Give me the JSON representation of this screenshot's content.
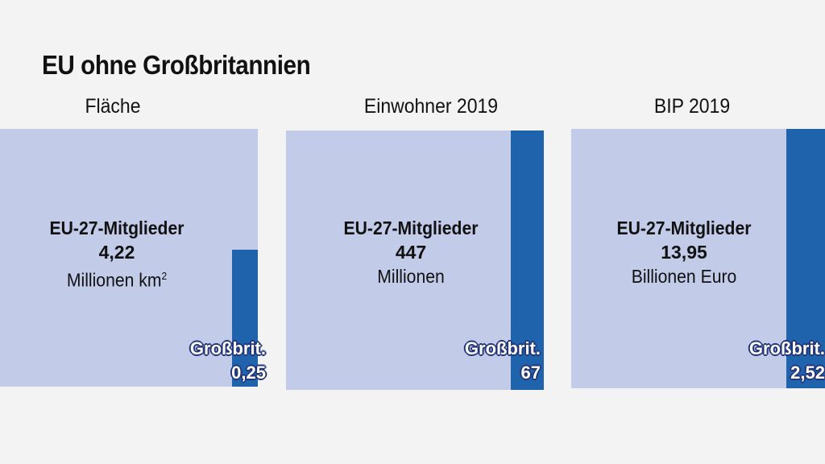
{
  "title": "EU ohne Großbritannien",
  "colors": {
    "eu27": "#c2cbe8",
    "uk": "#1f63ad",
    "background": "#f3f3f3"
  },
  "panels": [
    {
      "label": "Fläche",
      "eu_title": "EU-27-Mitglieder",
      "eu_value": "4,22",
      "eu_unit": "Millionen km",
      "eu_unit_sup": "2",
      "uk_label": "Großbrit.",
      "uk_value": "0,25"
    },
    {
      "label": "Einwohner 2019",
      "eu_title": "EU-27-Mitglieder",
      "eu_value": "447",
      "eu_unit": "Millionen",
      "eu_unit_sup": "",
      "uk_label": "Großbrit.",
      "uk_value": "67"
    },
    {
      "label": "BIP 2019",
      "eu_title": "EU-27-Mitglieder",
      "eu_value": "13,95",
      "eu_unit": "Billionen Euro",
      "eu_unit_sup": "",
      "uk_label": "Großbrit.",
      "uk_value": "2,52"
    }
  ],
  "chart_data": [
    {
      "type": "bar",
      "title": "Fläche",
      "unit": "Millionen km²",
      "categories": [
        "EU-27-Mitglieder",
        "Großbrit."
      ],
      "values": [
        4.22,
        0.25
      ]
    },
    {
      "type": "bar",
      "title": "Einwohner 2019",
      "unit": "Millionen",
      "categories": [
        "EU-27-Mitglieder",
        "Großbrit."
      ],
      "values": [
        447,
        67
      ]
    },
    {
      "type": "bar",
      "title": "BIP 2019",
      "unit": "Billionen Euro",
      "categories": [
        "EU-27-Mitglieder",
        "Großbrit."
      ],
      "values": [
        13.95,
        2.52
      ]
    }
  ]
}
